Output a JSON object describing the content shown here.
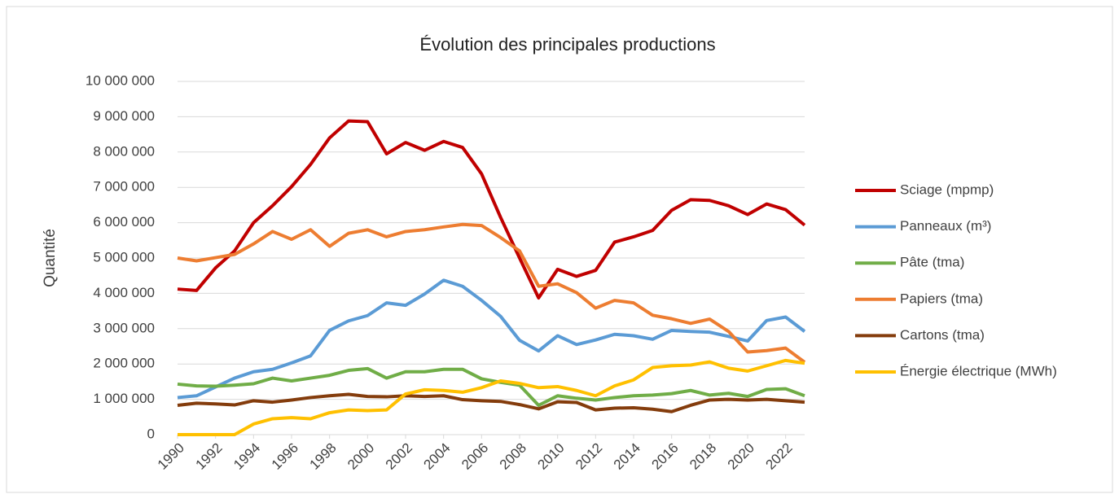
{
  "chart_data": {
    "type": "line",
    "title": "Évolution des principales productions",
    "y_label": "Quantité",
    "x": [
      1990,
      1991,
      1992,
      1993,
      1994,
      1995,
      1996,
      1997,
      1998,
      1999,
      2000,
      2001,
      2002,
      2003,
      2004,
      2005,
      2006,
      2007,
      2008,
      2009,
      2010,
      2011,
      2012,
      2013,
      2014,
      2015,
      2016,
      2017,
      2018,
      2019,
      2020,
      2021,
      2022,
      2023
    ],
    "xlim": [
      1990,
      2023
    ],
    "xticks": [
      1990,
      1992,
      1994,
      1996,
      1998,
      2000,
      2002,
      2004,
      2006,
      2008,
      2010,
      2012,
      2014,
      2016,
      2018,
      2020,
      2022
    ],
    "ylim": [
      0,
      10000000
    ],
    "yticks": [
      0,
      {
        "value": 1000000,
        "label": "1 000 000"
      },
      {
        "value": 2000000,
        "label": "2 000 000"
      },
      {
        "value": 3000000,
        "label": "3 000 000"
      },
      {
        "value": 4000000,
        "label": "4 000 000"
      },
      {
        "value": 5000000,
        "label": "5 000 000"
      },
      {
        "value": 6000000,
        "label": "6 000 000"
      },
      {
        "value": 7000000,
        "label": "7 000 000"
      },
      {
        "value": 8000000,
        "label": "8 000 000"
      },
      {
        "value": 9000000,
        "label": "9 000 000"
      },
      {
        "value": 10000000,
        "label": "10 000 000"
      }
    ],
    "grid": true,
    "legend": "right",
    "series": [
      {
        "name": "Sciage (mpmp)",
        "color": "#c00000",
        "values": [
          4120000,
          4080000,
          4720000,
          5200000,
          6000000,
          6480000,
          7020000,
          7650000,
          8400000,
          8880000,
          8860000,
          7950000,
          8270000,
          8050000,
          8300000,
          8130000,
          7380000,
          6150000,
          5000000,
          3870000,
          4680000,
          4480000,
          4650000,
          5450000,
          5600000,
          5780000,
          6350000,
          6650000,
          6630000,
          6480000,
          6230000,
          6530000,
          6370000,
          5930000
        ]
      },
      {
        "name": "Panneaux (m³)",
        "color": "#5b9bd5",
        "values": [
          1050000,
          1100000,
          1350000,
          1600000,
          1780000,
          1850000,
          2030000,
          2230000,
          2950000,
          3220000,
          3370000,
          3730000,
          3660000,
          3980000,
          4370000,
          4200000,
          3800000,
          3350000,
          2670000,
          2370000,
          2800000,
          2550000,
          2680000,
          2840000,
          2800000,
          2700000,
          2950000,
          2920000,
          2900000,
          2780000,
          2650000,
          3230000,
          3330000,
          2920000
        ]
      },
      {
        "name": "Pâte (tma)",
        "color": "#70ad47",
        "values": [
          1430000,
          1380000,
          1370000,
          1400000,
          1440000,
          1600000,
          1520000,
          1600000,
          1680000,
          1820000,
          1870000,
          1600000,
          1780000,
          1780000,
          1850000,
          1850000,
          1580000,
          1480000,
          1400000,
          830000,
          1100000,
          1030000,
          980000,
          1050000,
          1100000,
          1120000,
          1160000,
          1250000,
          1120000,
          1170000,
          1080000,
          1280000,
          1300000,
          1100000
        ]
      },
      {
        "name": "Papiers (tma)",
        "color": "#ed7d31",
        "values": [
          5000000,
          4920000,
          5010000,
          5100000,
          5400000,
          5750000,
          5530000,
          5800000,
          5330000,
          5700000,
          5800000,
          5600000,
          5750000,
          5800000,
          5880000,
          5950000,
          5920000,
          5580000,
          5200000,
          4200000,
          4270000,
          4020000,
          3580000,
          3800000,
          3730000,
          3380000,
          3280000,
          3150000,
          3270000,
          2920000,
          2340000,
          2380000,
          2450000,
          2050000
        ]
      },
      {
        "name": "Cartons (tma)",
        "color": "#843c0c",
        "values": [
          830000,
          890000,
          870000,
          840000,
          960000,
          920000,
          980000,
          1050000,
          1100000,
          1140000,
          1080000,
          1070000,
          1100000,
          1080000,
          1100000,
          990000,
          960000,
          940000,
          850000,
          730000,
          930000,
          910000,
          700000,
          750000,
          760000,
          720000,
          650000,
          830000,
          980000,
          1000000,
          980000,
          1000000,
          960000,
          920000
        ]
      },
      {
        "name": "Énergie électrique (MWh)",
        "color": "#ffc000",
        "values": [
          0,
          0,
          0,
          0,
          300000,
          450000,
          480000,
          450000,
          620000,
          700000,
          680000,
          700000,
          1150000,
          1270000,
          1250000,
          1200000,
          1330000,
          1520000,
          1450000,
          1330000,
          1360000,
          1250000,
          1100000,
          1380000,
          1550000,
          1900000,
          1950000,
          1970000,
          2060000,
          1880000,
          1800000,
          1950000,
          2100000,
          2020000
        ]
      }
    ]
  }
}
